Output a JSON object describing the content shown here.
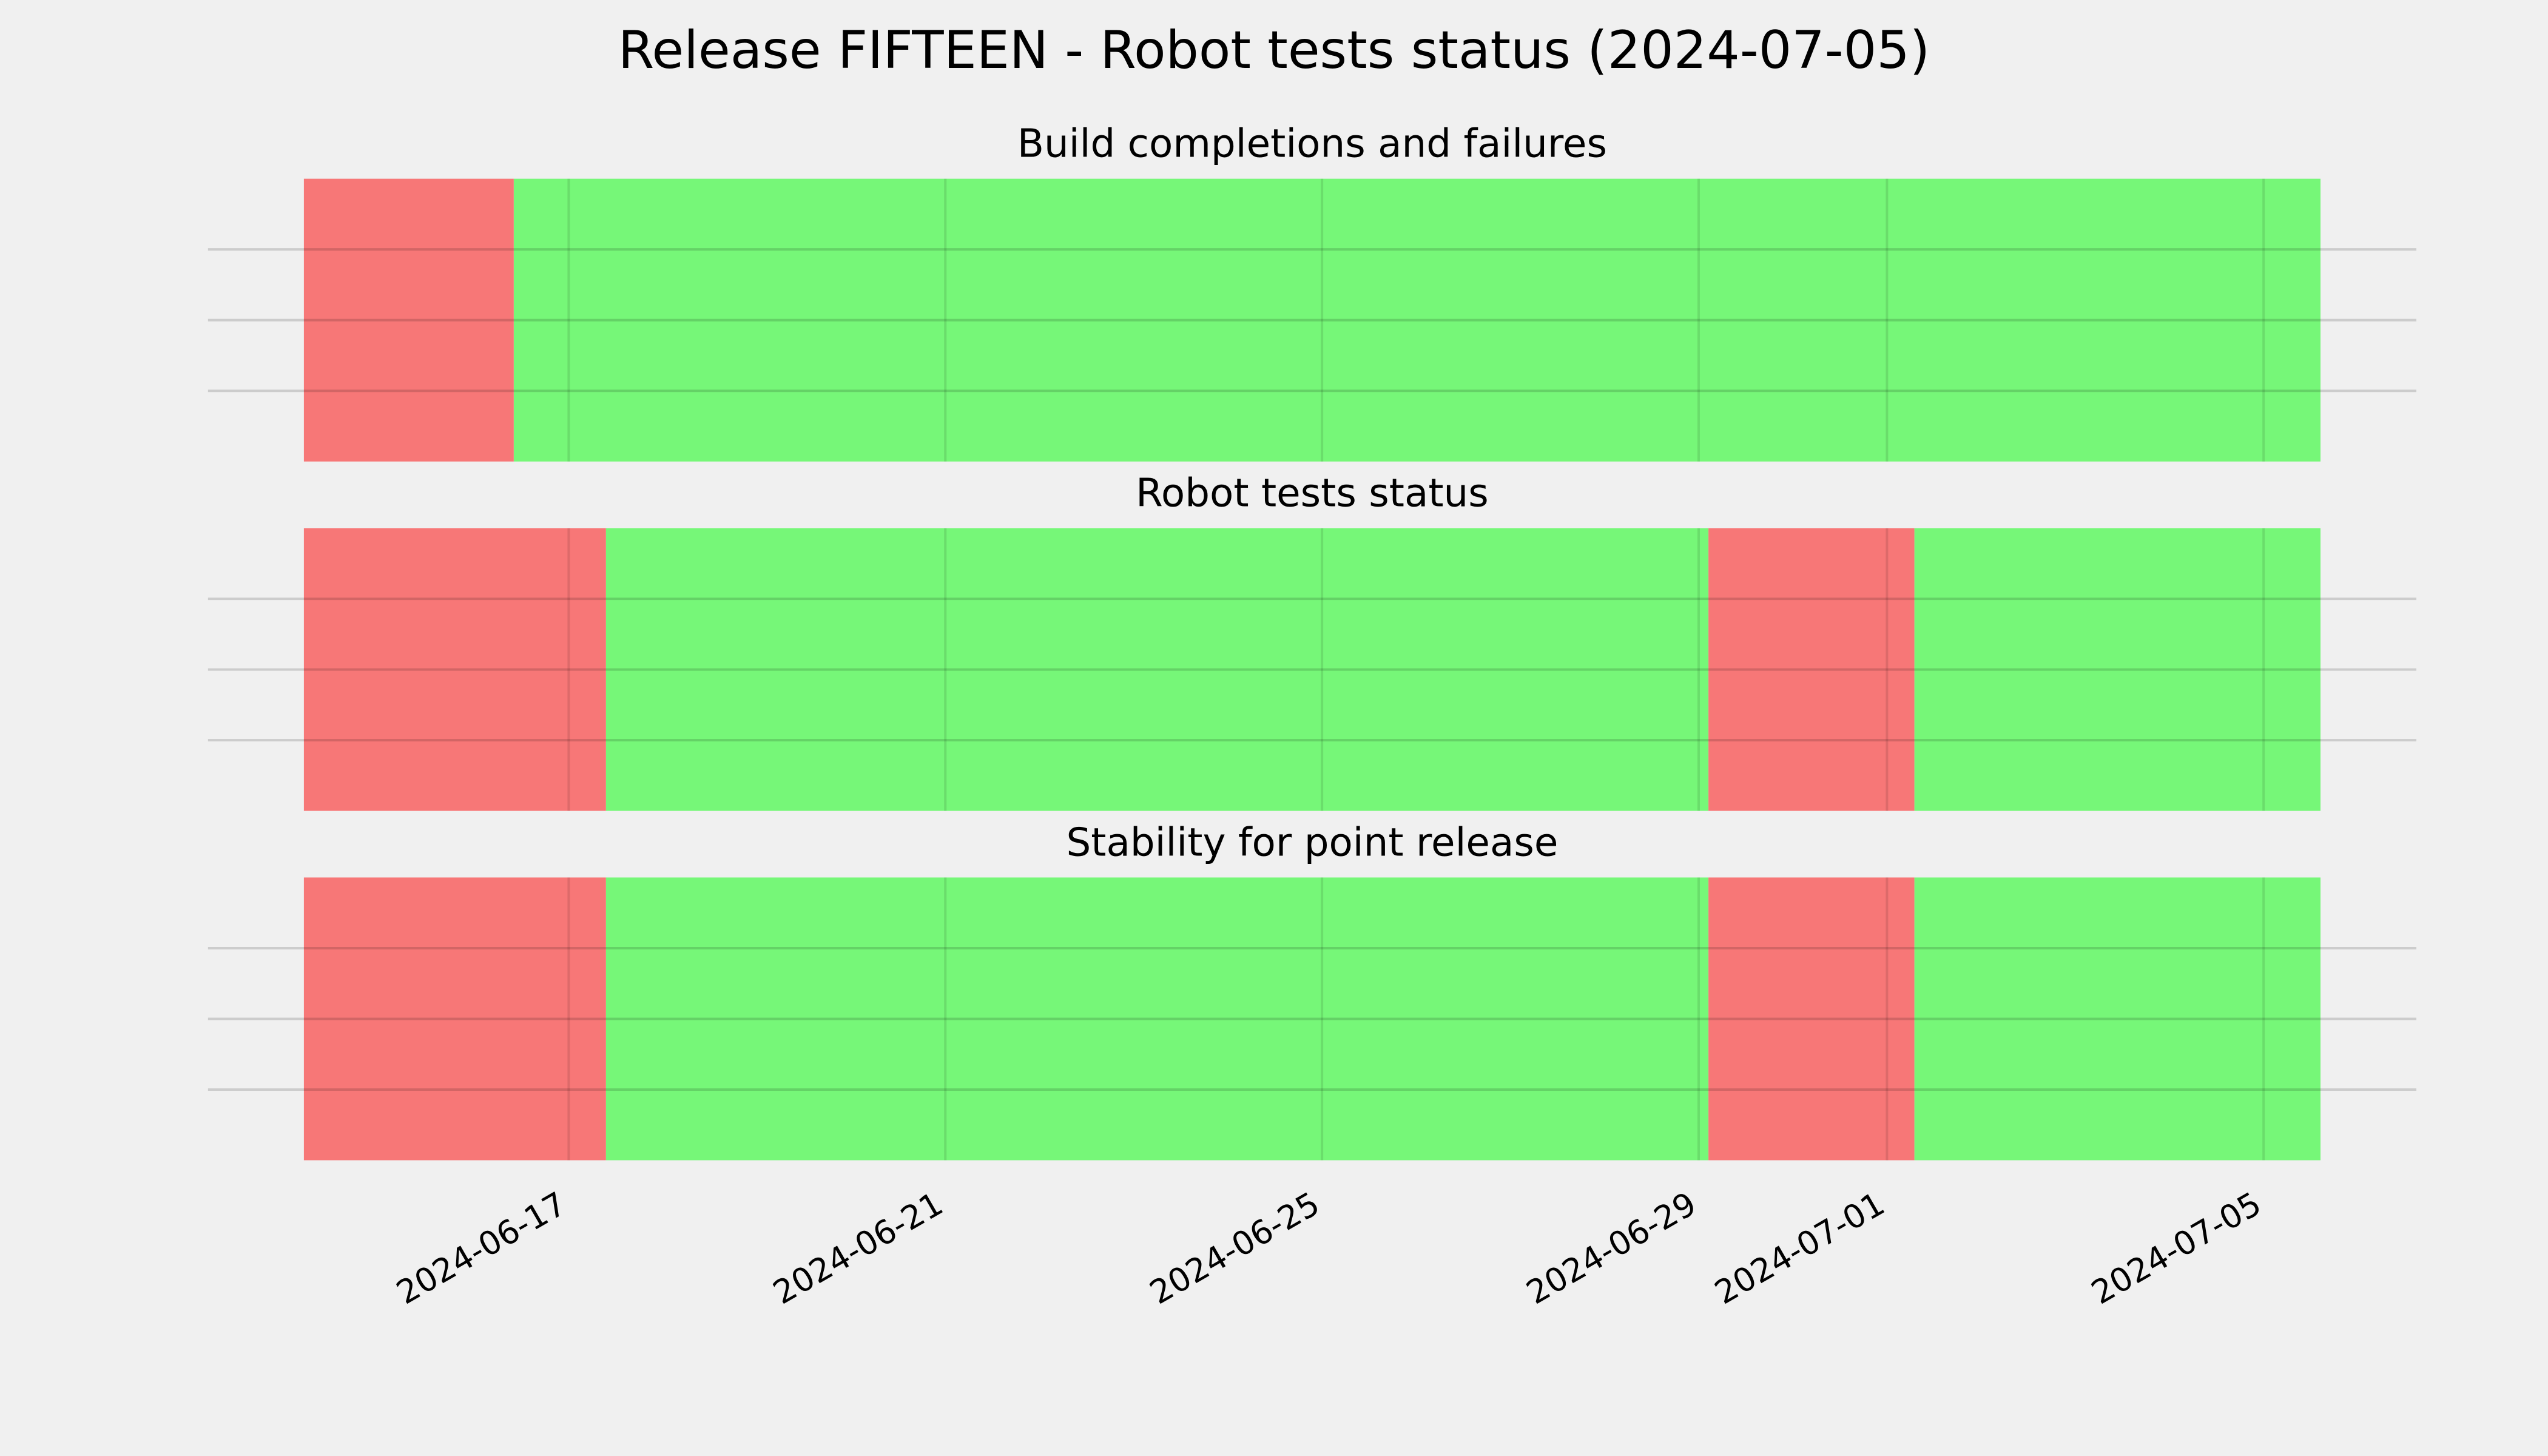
{
  "chart_data": {
    "type": "timeline",
    "title": "Release FIFTEEN - Robot tests status (2024-07-05)",
    "xlim": [
      "2024-06-14T04:30",
      "2024-07-05T14:30"
    ],
    "xticks": [
      "2024-06-17",
      "2024-06-21",
      "2024-06-25",
      "2024-06-29",
      "2024-07-01",
      "2024-07-05"
    ],
    "grid": true,
    "panels": [
      {
        "title": "Build completions and failures",
        "segments": [
          {
            "start": "2024-06-14T04:30",
            "end": "2024-06-16T10:00",
            "color": "#f77777"
          },
          {
            "start": "2024-06-16T10:00",
            "end": "2024-07-05T14:30",
            "color": "#76f778"
          }
        ]
      },
      {
        "title": "Robot tests status",
        "segments": [
          {
            "start": "2024-06-14T04:30",
            "end": "2024-06-17T09:30",
            "color": "#f77777"
          },
          {
            "start": "2024-06-17T09:30",
            "end": "2024-06-29T02:30",
            "color": "#76f778"
          },
          {
            "start": "2024-06-29T02:30",
            "end": "2024-07-01T07:00",
            "color": "#f77777"
          },
          {
            "start": "2024-07-01T07:00",
            "end": "2024-07-05T14:30",
            "color": "#76f778"
          }
        ]
      },
      {
        "title": "Stability for point release",
        "segments": [
          {
            "start": "2024-06-14T04:30",
            "end": "2024-06-17T09:30",
            "color": "#f77777"
          },
          {
            "start": "2024-06-17T09:30",
            "end": "2024-06-29T02:30",
            "color": "#76f778"
          },
          {
            "start": "2024-06-29T02:30",
            "end": "2024-07-01T07:00",
            "color": "#f77777"
          },
          {
            "start": "2024-07-01T07:00",
            "end": "2024-07-05T14:30",
            "color": "#76f778"
          }
        ]
      }
    ]
  }
}
